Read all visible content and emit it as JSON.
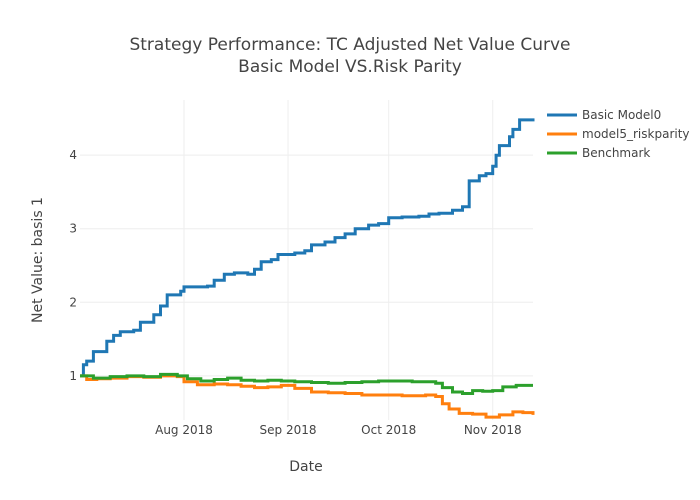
{
  "chart_data": {
    "type": "line",
    "title_lines": [
      "Strategy Performance: TC Adjusted Net Value Curve",
      "Basic Model VS.Risk Parity"
    ],
    "xlabel": "Date",
    "ylabel": "Net Value: basis 1",
    "xlim": [
      "2018-07-01",
      "2018-11-13"
    ],
    "ylim": [
      0.4,
      4.75
    ],
    "x_ticks": [
      {
        "date": "2018-08-01",
        "label": "Aug 2018"
      },
      {
        "date": "2018-09-01",
        "label": "Sep 2018"
      },
      {
        "date": "2018-10-01",
        "label": "Oct 2018"
      },
      {
        "date": "2018-11-01",
        "label": "Nov 2018"
      }
    ],
    "y_ticks": [
      1,
      2,
      3,
      4
    ],
    "grid": true,
    "legend_position": "top-right",
    "series": [
      {
        "name": "Basic Model0",
        "color": "#1f77b4",
        "points": [
          [
            "2018-07-01",
            1.0
          ],
          [
            "2018-07-02",
            1.15
          ],
          [
            "2018-07-03",
            1.2
          ],
          [
            "2018-07-05",
            1.33
          ],
          [
            "2018-07-09",
            1.47
          ],
          [
            "2018-07-11",
            1.55
          ],
          [
            "2018-07-13",
            1.6
          ],
          [
            "2018-07-17",
            1.62
          ],
          [
            "2018-07-19",
            1.73
          ],
          [
            "2018-07-23",
            1.83
          ],
          [
            "2018-07-25",
            1.95
          ],
          [
            "2018-07-27",
            2.1
          ],
          [
            "2018-07-31",
            2.15
          ],
          [
            "2018-08-01",
            2.21
          ],
          [
            "2018-08-08",
            2.22
          ],
          [
            "2018-08-10",
            2.3
          ],
          [
            "2018-08-13",
            2.38
          ],
          [
            "2018-08-16",
            2.4
          ],
          [
            "2018-08-20",
            2.38
          ],
          [
            "2018-08-22",
            2.45
          ],
          [
            "2018-08-24",
            2.55
          ],
          [
            "2018-08-27",
            2.58
          ],
          [
            "2018-08-29",
            2.65
          ],
          [
            "2018-09-03",
            2.67
          ],
          [
            "2018-09-06",
            2.7
          ],
          [
            "2018-09-08",
            2.78
          ],
          [
            "2018-09-12",
            2.82
          ],
          [
            "2018-09-15",
            2.88
          ],
          [
            "2018-09-18",
            2.93
          ],
          [
            "2018-09-21",
            3.0
          ],
          [
            "2018-09-25",
            3.05
          ],
          [
            "2018-09-28",
            3.07
          ],
          [
            "2018-10-01",
            3.15
          ],
          [
            "2018-10-05",
            3.16
          ],
          [
            "2018-10-10",
            3.17
          ],
          [
            "2018-10-13",
            3.2
          ],
          [
            "2018-10-16",
            3.21
          ],
          [
            "2018-10-20",
            3.25
          ],
          [
            "2018-10-23",
            3.3
          ],
          [
            "2018-10-25",
            3.65
          ],
          [
            "2018-10-28",
            3.72
          ],
          [
            "2018-10-30",
            3.75
          ],
          [
            "2018-11-01",
            3.85
          ],
          [
            "2018-11-02",
            4.0
          ],
          [
            "2018-11-03",
            4.13
          ],
          [
            "2018-11-06",
            4.25
          ],
          [
            "2018-11-07",
            4.35
          ],
          [
            "2018-11-09",
            4.48
          ],
          [
            "2018-11-13",
            4.5
          ]
        ]
      },
      {
        "name": "model5_riskparity",
        "color": "#ff7f0e",
        "points": [
          [
            "2018-07-01",
            1.0
          ],
          [
            "2018-07-03",
            0.95
          ],
          [
            "2018-07-06",
            0.96
          ],
          [
            "2018-07-10",
            0.97
          ],
          [
            "2018-07-15",
            0.99
          ],
          [
            "2018-07-20",
            0.98
          ],
          [
            "2018-07-25",
            1.0
          ],
          [
            "2018-07-30",
            0.99
          ],
          [
            "2018-08-01",
            0.92
          ],
          [
            "2018-08-05",
            0.88
          ],
          [
            "2018-08-10",
            0.89
          ],
          [
            "2018-08-14",
            0.88
          ],
          [
            "2018-08-18",
            0.86
          ],
          [
            "2018-08-22",
            0.84
          ],
          [
            "2018-08-26",
            0.85
          ],
          [
            "2018-08-30",
            0.87
          ],
          [
            "2018-09-03",
            0.83
          ],
          [
            "2018-09-08",
            0.78
          ],
          [
            "2018-09-13",
            0.77
          ],
          [
            "2018-09-18",
            0.76
          ],
          [
            "2018-09-23",
            0.74
          ],
          [
            "2018-09-28",
            0.74
          ],
          [
            "2018-10-05",
            0.73
          ],
          [
            "2018-10-12",
            0.74
          ],
          [
            "2018-10-15",
            0.72
          ],
          [
            "2018-10-17",
            0.62
          ],
          [
            "2018-10-19",
            0.55
          ],
          [
            "2018-10-22",
            0.49
          ],
          [
            "2018-10-26",
            0.48
          ],
          [
            "2018-10-30",
            0.44
          ],
          [
            "2018-11-03",
            0.47
          ],
          [
            "2018-11-07",
            0.51
          ],
          [
            "2018-11-10",
            0.5
          ],
          [
            "2018-11-13",
            0.47
          ]
        ]
      },
      {
        "name": "Benchmark",
        "color": "#2ca02c",
        "points": [
          [
            "2018-07-01",
            1.0
          ],
          [
            "2018-07-05",
            0.97
          ],
          [
            "2018-07-10",
            0.99
          ],
          [
            "2018-07-15",
            1.0
          ],
          [
            "2018-07-20",
            0.99
          ],
          [
            "2018-07-25",
            1.02
          ],
          [
            "2018-07-30",
            1.0
          ],
          [
            "2018-08-02",
            0.96
          ],
          [
            "2018-08-06",
            0.93
          ],
          [
            "2018-08-10",
            0.95
          ],
          [
            "2018-08-14",
            0.97
          ],
          [
            "2018-08-18",
            0.94
          ],
          [
            "2018-08-22",
            0.93
          ],
          [
            "2018-08-26",
            0.94
          ],
          [
            "2018-08-30",
            0.93
          ],
          [
            "2018-09-03",
            0.92
          ],
          [
            "2018-09-08",
            0.91
          ],
          [
            "2018-09-13",
            0.9
          ],
          [
            "2018-09-18",
            0.91
          ],
          [
            "2018-09-23",
            0.92
          ],
          [
            "2018-09-28",
            0.93
          ],
          [
            "2018-10-03",
            0.93
          ],
          [
            "2018-10-08",
            0.92
          ],
          [
            "2018-10-12",
            0.92
          ],
          [
            "2018-10-15",
            0.9
          ],
          [
            "2018-10-17",
            0.84
          ],
          [
            "2018-10-20",
            0.78
          ],
          [
            "2018-10-23",
            0.76
          ],
          [
            "2018-10-26",
            0.8
          ],
          [
            "2018-10-29",
            0.79
          ],
          [
            "2018-11-01",
            0.8
          ],
          [
            "2018-11-04",
            0.85
          ],
          [
            "2018-11-08",
            0.87
          ],
          [
            "2018-11-13",
            0.87
          ]
        ]
      }
    ]
  }
}
